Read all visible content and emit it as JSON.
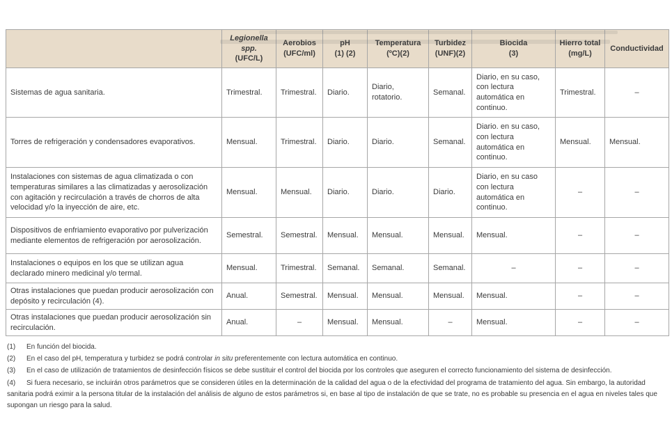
{
  "colors": {
    "header_background": "#e8dcca",
    "grid_border": "#a6a6a6",
    "text": "#3b3b3b"
  },
  "table": {
    "headers": [
      {
        "main": "",
        "sub": ""
      },
      {
        "main": "Legionella spp.",
        "sub": "(UFC/L)",
        "italic": true
      },
      {
        "main": "Aerobios",
        "sub": "(UFC/ml)"
      },
      {
        "main": "pH",
        "sub": "(1) (2)"
      },
      {
        "main": "Temperatura",
        "sub": "(ºC)(2)"
      },
      {
        "main": "Turbidez",
        "sub": "(UNF)(2)"
      },
      {
        "main": "Biocida",
        "sub": "(3)"
      },
      {
        "main": "Hierro total",
        "sub": "(mg/L)"
      },
      {
        "main": "Conductividad",
        "sub": ""
      }
    ],
    "rows": [
      {
        "label": "Sistemas de agua sanitaria.",
        "cells": [
          "Trimestral.",
          "Trimestral.",
          "Diario.",
          "Diario, rotatorio.",
          "Semanal.",
          "Diario, en su caso, con lectura automática en continuo.",
          "Trimestral.",
          "–"
        ]
      },
      {
        "label": "Torres de refrigeración y condensadores evaporativos.",
        "cells": [
          "Mensual.",
          "Trimestral.",
          "Diario.",
          "Diario.",
          "Semanal.",
          "Diario. en su caso, con lectura automática en continuo.",
          "Mensual.",
          "Mensual."
        ]
      },
      {
        "label": "Instalaciones con sistemas de agua climatizada o con temperaturas similares a las climatizadas y aerosolización con agitación y recirculación a través de chorros de alta velocidad y/o la inyección de aire, etc.",
        "cells": [
          "Mensual.",
          "Mensual.",
          "Diario.",
          "Diario.",
          "Diario.",
          "Diario, en su caso con lectura automática en continuo.",
          "–",
          "–"
        ]
      },
      {
        "label": "Dispositivos de enfriamiento evaporativo por pulverización mediante elementos de refrigeración por aerosolización.",
        "cells": [
          "Semestral.",
          "Semestral.",
          "Mensual.",
          "Mensual.",
          "Mensual.",
          "Mensual.",
          "–",
          "–"
        ]
      },
      {
        "label": "Instalaciones o equipos en los que se utilizan agua declarado minero medicinal y/o termal.",
        "cells": [
          "Mensual.",
          "Trimestral.",
          "Semanal.",
          "Semanal.",
          "Semanal.",
          "–",
          "–",
          "–"
        ]
      },
      {
        "label": "Otras instalaciones que puedan producir aerosolización con depósito y recirculación (4).",
        "cells": [
          "Anual.",
          "Semestral.",
          "Mensual.",
          "Mensual.",
          "Mensual.",
          "Mensual.",
          "–",
          "–"
        ]
      },
      {
        "label": "Otras instalaciones que puedan producir aerosolización sin recirculación.",
        "cells": [
          "Anual.",
          "–",
          "Mensual.",
          "Mensual.",
          "–",
          "Mensual.",
          "–",
          "–"
        ]
      }
    ]
  },
  "footnotes": [
    {
      "num": "(1)",
      "text": "En función del biocida."
    },
    {
      "num": "(2)",
      "pre": "En el caso del pH, temperatura y turbidez se podrá controlar ",
      "italic": "in situ",
      "post": " preferentemente con lectura automática en continuo."
    },
    {
      "num": "(3)",
      "text": "En el caso de utilización de tratamientos de desinfección físicos se debe sustituir el control del biocida por los controles que aseguren el correcto funcionamiento del sistema de desinfección."
    },
    {
      "num": "(4)",
      "text": "Si fuera necesario, se incluirán otros parámetros que se consideren útiles en la determinación de la calidad del agua o de la efectividad del programa de tratamiento del agua. Sin embargo, la autoridad sanitaria podrá eximir a la persona titular de la instalación del análisis de alguno de estos parámetros si, en base al tipo de instalación de que se trate, no es probable su presencia en el agua en niveles tales que supongan un riesgo para la salud."
    }
  ]
}
